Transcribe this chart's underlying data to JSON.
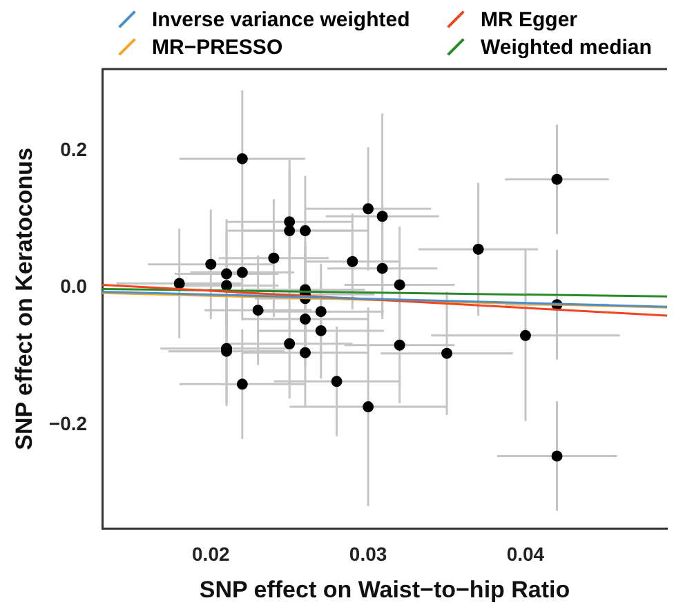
{
  "chart_data": {
    "type": "scatter",
    "xlabel": "SNP effect on Waist−to−hip Ratio",
    "ylabel": "SNP effect on Keratoconus",
    "xlim": [
      0.0131,
      0.049
    ],
    "ylim": [
      -0.352,
      0.319
    ],
    "xticks": [
      0.02,
      0.03,
      0.04
    ],
    "yticks": [
      {
        "value": -0.2,
        "label": "−0.2"
      },
      {
        "value": 0,
        "label": "0.0"
      },
      {
        "value": 0.2,
        "label": "0.2"
      }
    ],
    "grid": false,
    "legend": "top",
    "marker": "circle",
    "series": [
      {
        "color": "#000000",
        "x": [
          0.018,
          0.02,
          0.021,
          0.021,
          0.022,
          0.022,
          0.023,
          0.024,
          0.025,
          0.025,
          0.026,
          0.026,
          0.026,
          0.026,
          0.026,
          0.027,
          0.027,
          0.029,
          0.03,
          0.0309,
          0.0309,
          0.021,
          0.021,
          0.022,
          0.025,
          0.026,
          0.028,
          0.03,
          0.032,
          0.037,
          0.042,
          0.042,
          0.032,
          0.035,
          0.04,
          0.042
        ],
        "values": [
          0.006,
          0.034,
          0.02,
          0.003,
          0.188,
          0.022,
          -0.033,
          0.043,
          0.096,
          0.083,
          0.083,
          -0.003,
          -0.01,
          -0.016,
          -0.046,
          -0.035,
          -0.063,
          0.038,
          0.115,
          0.104,
          0.028,
          -0.089,
          -0.093,
          -0.141,
          -0.082,
          -0.095,
          -0.137,
          -0.174,
          0.004,
          0.056,
          0.158,
          -0.025,
          -0.084,
          -0.096,
          -0.07,
          -0.246
        ],
        "errors": [
          0.08,
          0.08,
          0.08,
          0.08,
          0.1,
          0.07,
          0.08,
          0.086,
          0.09,
          0.09,
          0.08,
          0.07,
          0.07,
          0.07,
          0.07,
          0.07,
          0.07,
          0.07,
          0.09,
          0.15,
          0.07,
          0.08,
          0.08,
          0.08,
          0.08,
          0.08,
          0.08,
          0.145,
          0.085,
          0.097,
          0.08,
          0.08,
          0.085,
          0.09,
          0.125,
          0.08
        ],
        "xerrors": [
          0.004,
          0.004,
          0.0033,
          0.0033,
          0.004,
          0.0033,
          0.0034,
          0.0035,
          0.004,
          0.004,
          0.004,
          0.0038,
          0.0044,
          0.0032,
          0.004,
          0.004,
          0.004,
          0.003,
          0.004,
          0.0036,
          0.0035,
          0.0042,
          0.0037,
          0.004,
          0.004,
          0.004,
          0.004,
          0.005,
          0.0035,
          0.0038,
          0.0033,
          0.0033,
          0.0035,
          0.0042,
          0.006,
          0.0038
        ]
      },
      {
        "type": "line",
        "name": "Inverse variance weighted",
        "color": "#4d8fc9",
        "marker": "none",
        "x": [
          0.0131,
          0.049
        ],
        "values": [
          -0.006,
          -0.028
        ]
      },
      {
        "type": "line",
        "name": "MR Egger",
        "color": "#f0451f",
        "marker": "none",
        "x": [
          0.0131,
          0.049
        ],
        "values": [
          0.004,
          -0.041
        ]
      },
      {
        "type": "line",
        "name": "MR−PRESSO",
        "color": "#f5a623",
        "marker": "none",
        "x": [
          0.0131,
          0.049
        ],
        "values": [
          -0.008,
          -0.029
        ]
      },
      {
        "type": "line",
        "name": "Weighted median",
        "color": "#2a8a2a",
        "marker": "none",
        "x": [
          0.0131,
          0.049
        ],
        "values": [
          -0.002,
          -0.013
        ]
      }
    ]
  }
}
